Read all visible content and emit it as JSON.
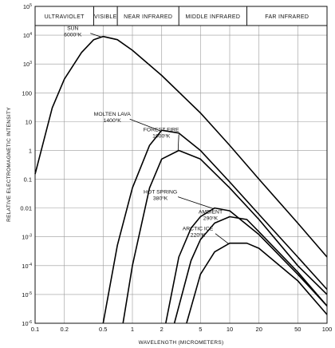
{
  "chart_data": {
    "type": "line",
    "title": "",
    "xlabel": "WAVELENGTH (MICROMETERS)",
    "ylabel": "RELATIVE ELECTROMAGNETIC INTENSITY",
    "xscale": "log",
    "yscale": "log",
    "xlim": [
      0.1,
      100
    ],
    "ylim": [
      1e-06,
      100000.0
    ],
    "grid": true,
    "x_ticks": [
      {
        "v": 0.1,
        "label": "0.1"
      },
      {
        "v": 0.2,
        "label": "0.2"
      },
      {
        "v": 0.5,
        "label": "0.5"
      },
      {
        "v": 1,
        "label": "1"
      },
      {
        "v": 2,
        "label": "2"
      },
      {
        "v": 5,
        "label": "5"
      },
      {
        "v": 10,
        "label": "10"
      },
      {
        "v": 20,
        "label": "20"
      },
      {
        "v": 50,
        "label": "50"
      },
      {
        "v": 100,
        "label": "100"
      }
    ],
    "y_ticks": [
      {
        "v": 100000.0,
        "base": "10",
        "exp": "5"
      },
      {
        "v": 10000.0,
        "base": "10",
        "exp": "4"
      },
      {
        "v": 1000.0,
        "base": "10",
        "exp": "3"
      },
      {
        "v": 100,
        "base": "100",
        "exp": ""
      },
      {
        "v": 10,
        "base": "10",
        "exp": ""
      },
      {
        "v": 1,
        "base": "1",
        "exp": ""
      },
      {
        "v": 0.1,
        "base": "0.1",
        "exp": ""
      },
      {
        "v": 0.01,
        "base": "0.01",
        "exp": ""
      },
      {
        "v": 0.001,
        "base": "10",
        "exp": "-3"
      },
      {
        "v": 0.0001,
        "base": "10",
        "exp": "-4"
      },
      {
        "v": 1e-05,
        "base": "10",
        "exp": "-5"
      },
      {
        "v": 1e-06,
        "base": "10",
        "exp": "-6"
      }
    ],
    "spectrum_bands": [
      {
        "label": "ULTRAVIOLET",
        "from": 0.1,
        "to": 0.4
      },
      {
        "label": "VISIBLE",
        "from": 0.4,
        "to": 0.7
      },
      {
        "label": "NEAR INFRARED",
        "from": 0.7,
        "to": 3
      },
      {
        "label": "MIDDLE INFRARED",
        "from": 3,
        "to": 15
      },
      {
        "label": "FAR INFRARED",
        "from": 15,
        "to": 100
      }
    ],
    "series": [
      {
        "name": "SUN",
        "temp": "6000",
        "unit": "K",
        "x": [
          0.1,
          0.15,
          0.2,
          0.3,
          0.4,
          0.5,
          0.7,
          1,
          2,
          5,
          10,
          20,
          50,
          100
        ],
        "y": [
          0.15,
          30,
          300,
          2500,
          7000,
          9000,
          7000,
          3000,
          400,
          20,
          1.5,
          0.1,
          0.003,
          0.0002
        ]
      },
      {
        "name": "MOLTEN LAVA",
        "temp": "1400",
        "unit": "K",
        "x": [
          0.5,
          0.7,
          1,
          1.5,
          2,
          3,
          5,
          10,
          20,
          50,
          100
        ],
        "y": [
          1e-06,
          0.0005,
          0.05,
          1.5,
          5,
          4,
          1,
          0.08,
          0.006,
          0.0002,
          1.5e-05
        ]
      },
      {
        "name": "FOREST FIRE",
        "temp": "1000",
        "unit": "K",
        "x": [
          0.8,
          1,
          1.5,
          2,
          3,
          5,
          10,
          20,
          50,
          100
        ],
        "y": [
          1e-06,
          0.0001,
          0.05,
          0.5,
          1,
          0.5,
          0.05,
          0.004,
          0.0001,
          1e-05
        ]
      },
      {
        "name": "HOT SPRING",
        "temp": "380",
        "unit": "K",
        "x": [
          2.2,
          3,
          4,
          5,
          7,
          10,
          20,
          50,
          100
        ],
        "y": [
          1e-06,
          0.0002,
          0.002,
          0.005,
          0.01,
          0.008,
          0.0012,
          5e-05,
          4e-06
        ]
      },
      {
        "name": "AMBIENT",
        "temp": "290",
        "unit": "K",
        "x": [
          2.7,
          4,
          5,
          7,
          10,
          15,
          20,
          50,
          100
        ],
        "y": [
          1e-06,
          0.00015,
          0.0008,
          0.003,
          0.005,
          0.004,
          0.0015,
          6e-05,
          4e-06
        ]
      },
      {
        "name": "ARCTIC ICE",
        "temp": "220",
        "unit": "K",
        "x": [
          3.6,
          5,
          7,
          10,
          15,
          20,
          50,
          100
        ],
        "y": [
          1e-06,
          5e-05,
          0.0003,
          0.0006,
          0.0006,
          0.0004,
          3e-05,
          2e-06
        ]
      }
    ],
    "annotations": [
      {
        "series": "SUN",
        "lines": [
          "SUN",
          "6000"
        ],
        "unit": "K"
      },
      {
        "series": "MOLTEN LAVA",
        "lines": [
          "MOLTEN LAVA",
          "1400"
        ],
        "unit": "K"
      },
      {
        "series": "FOREST FIRE",
        "lines": [
          "FOREST FIRE",
          "1000"
        ],
        "unit": "K"
      },
      {
        "series": "HOT SPRING",
        "lines": [
          "HOT SPRING",
          "380"
        ],
        "unit": "K"
      },
      {
        "series": "AMBIENT",
        "lines": [
          "AMBIENT",
          "290"
        ],
        "unit": "K"
      },
      {
        "series": "ARCTIC ICE",
        "lines": [
          "ARCTIC ICE",
          "220"
        ],
        "unit": "K"
      }
    ]
  }
}
